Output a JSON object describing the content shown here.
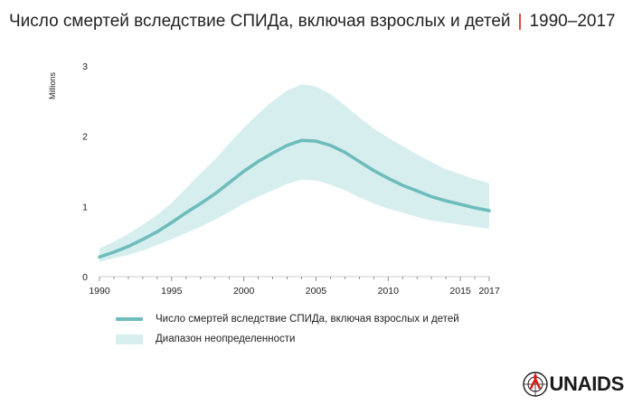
{
  "title": {
    "main": "Число смертей вследствие СПИДа, включая взрослых и детей",
    "separator": "|",
    "years": "1990–2017"
  },
  "chart_data": {
    "type": "area",
    "ylabel": "Millions",
    "ylim": [
      0,
      3
    ],
    "yticks": [
      0,
      1,
      2,
      3
    ],
    "xlim": [
      1990,
      2017
    ],
    "xticks": [
      1990,
      1995,
      2000,
      2005,
      2010,
      2015,
      2017
    ],
    "grid": false,
    "legend_position": "bottom-left",
    "x": [
      1990,
      1991,
      1992,
      1993,
      1994,
      1995,
      1996,
      1997,
      1998,
      1999,
      2000,
      2001,
      2002,
      2003,
      2004,
      2005,
      2006,
      2007,
      2008,
      2009,
      2010,
      2011,
      2012,
      2013,
      2014,
      2015,
      2016,
      2017
    ],
    "series": [
      {
        "name": "Число смертей вследствие СПИДа, включая взрослых и детей",
        "type": "line",
        "color": "#6fbcbd",
        "values": [
          0.28,
          0.35,
          0.43,
          0.53,
          0.64,
          0.77,
          0.91,
          1.04,
          1.18,
          1.34,
          1.5,
          1.64,
          1.76,
          1.87,
          1.94,
          1.93,
          1.87,
          1.77,
          1.64,
          1.51,
          1.4,
          1.3,
          1.22,
          1.14,
          1.08,
          1.03,
          0.98,
          0.94
        ]
      },
      {
        "name": "Диапазон неопределенности",
        "type": "band",
        "color": "#d6efee",
        "upper": [
          0.4,
          0.5,
          0.61,
          0.74,
          0.88,
          1.05,
          1.26,
          1.47,
          1.67,
          1.9,
          2.12,
          2.32,
          2.5,
          2.65,
          2.74,
          2.71,
          2.6,
          2.44,
          2.27,
          2.11,
          1.98,
          1.86,
          1.74,
          1.63,
          1.53,
          1.46,
          1.39,
          1.33
        ],
        "lower": [
          0.21,
          0.26,
          0.31,
          0.37,
          0.45,
          0.53,
          0.62,
          0.71,
          0.81,
          0.92,
          1.04,
          1.14,
          1.23,
          1.32,
          1.38,
          1.37,
          1.31,
          1.23,
          1.13,
          1.04,
          0.97,
          0.91,
          0.85,
          0.8,
          0.77,
          0.74,
          0.71,
          0.68
        ]
      }
    ]
  },
  "legend": {
    "line_label": "Число смертей вследствие СПИДа, включая взрослых и детей",
    "band_label": "Диапазон неопределенности"
  },
  "logo": {
    "text": "UNAIDS",
    "ribbon_glyph": "♥"
  }
}
